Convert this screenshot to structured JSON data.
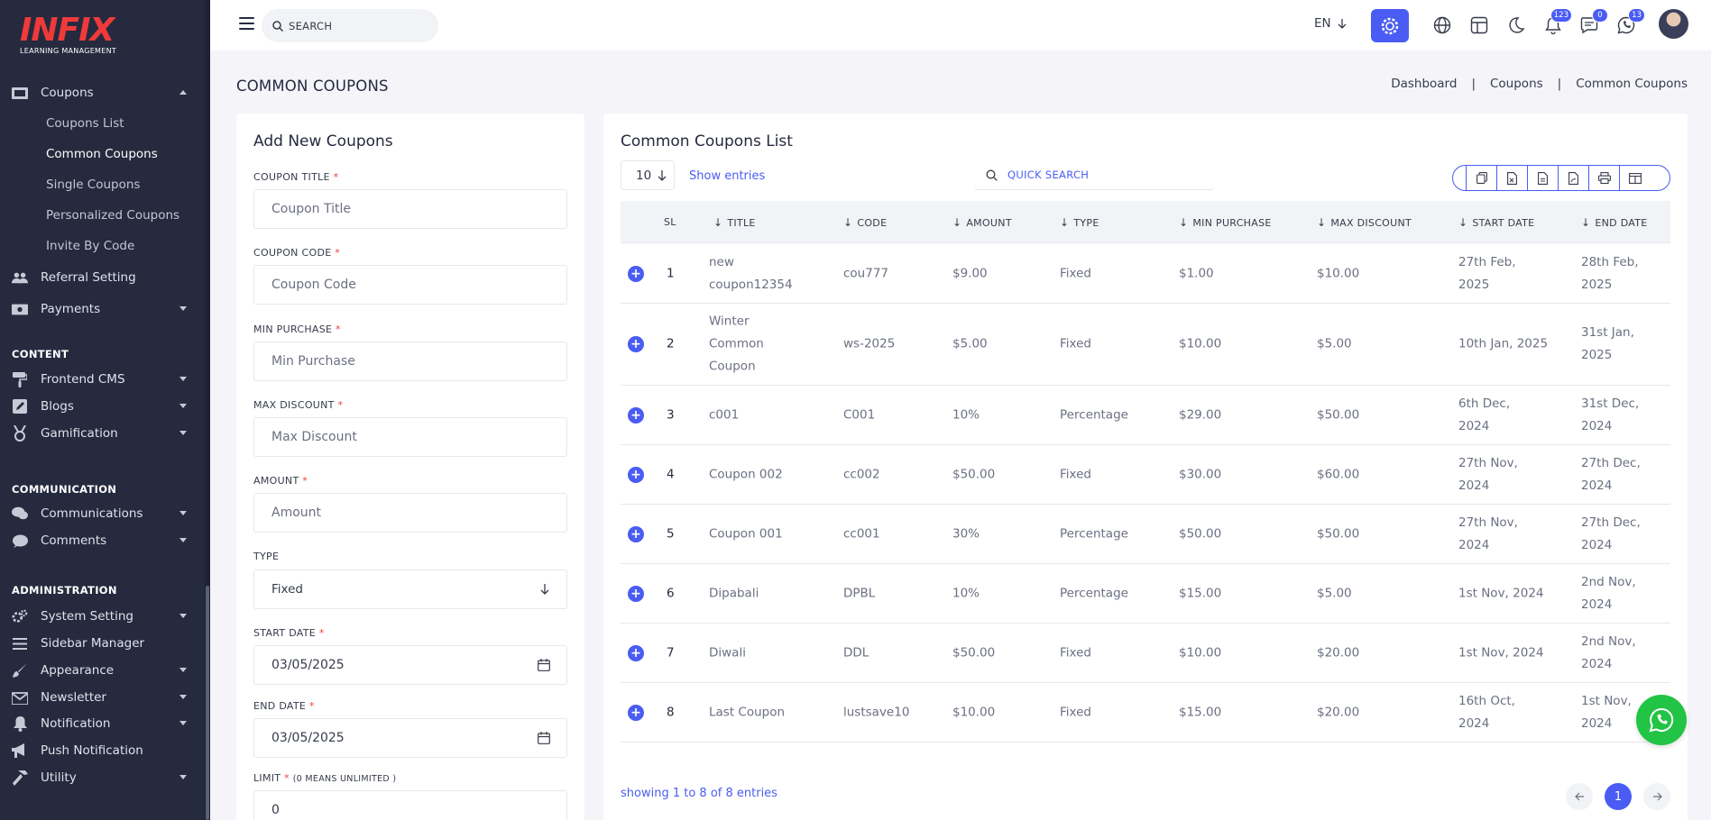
{
  "brand": {
    "logo_text": "INFIX",
    "tagline": "LEARNING MANAGEMENT"
  },
  "sidebar": {
    "coupons": "Coupons",
    "sub": [
      "Coupons List",
      "Common Coupons",
      "Single Coupons",
      "Personalized Coupons",
      "Invite By Code"
    ],
    "referral": "Referral Setting",
    "payments": "Payments",
    "section_content": "CONTENT",
    "frontend": "Frontend CMS",
    "blogs": "Blogs",
    "gamification": "Gamification",
    "section_communication": "COMMUNICATION",
    "communications": "Communications",
    "comments": "Comments",
    "section_administration": "ADMINISTRATION",
    "system_setting": "System Setting",
    "sidebar_manager": "Sidebar Manager",
    "appearance": "Appearance",
    "newsletter": "Newsletter",
    "notification": "Notification",
    "push_notification": "Push Notification",
    "utility": "Utility"
  },
  "topbar": {
    "search_placeholder": "SEARCH",
    "language": "EN",
    "badges": {
      "notifications": "123",
      "messages": "0",
      "whatsapp": "13"
    }
  },
  "header": {
    "title": "COMMON COUPONS",
    "breadcrumb": [
      "Dashboard",
      "Coupons",
      "Common Coupons"
    ],
    "sep": "|"
  },
  "form": {
    "title": "Add New Coupons",
    "coupon_title_label": "COUPON TITLE",
    "coupon_title_placeholder": "Coupon Title",
    "coupon_code_label": "COUPON CODE",
    "coupon_code_placeholder": "Coupon Code",
    "min_purchase_label": "MIN PURCHASE",
    "min_purchase_placeholder": "Min Purchase",
    "max_discount_label": "MAX DISCOUNT",
    "max_discount_placeholder": "Max Discount",
    "amount_label": "AMOUNT",
    "amount_placeholder": "Amount",
    "type_label": "TYPE",
    "type_value": "Fixed",
    "start_date_label": "START DATE",
    "start_date_value": "03/05/2025",
    "end_date_label": "END DATE",
    "end_date_value": "03/05/2025",
    "limit_label": "LIMIT",
    "limit_note": "(0 MEANS UNLIMITED )",
    "limit_value": "0",
    "required_mark": "*"
  },
  "list": {
    "title": "Common Coupons List",
    "entries_value": "10",
    "entries_label": "Show entries",
    "quick_search_placeholder": "QUICK SEARCH",
    "columns": {
      "sl": "SL",
      "title": "TITLE",
      "code": "CODE",
      "amount": "AMOUNT",
      "type": "TYPE",
      "min_purchase": "MIN PURCHASE",
      "max_discount": "MAX DISCOUNT",
      "start_date": "START DATE",
      "end_date": "END DATE"
    },
    "rows": [
      {
        "sl": "1",
        "title": "new coupon12354",
        "code": "cou777",
        "amount": "$9.00",
        "type": "Fixed",
        "min": "$1.00",
        "max": "$10.00",
        "start": "27th Feb, 2025",
        "end": "28th Feb, 2025"
      },
      {
        "sl": "2",
        "title": "Winter Common Coupon",
        "code": "ws-2025",
        "amount": "$5.00",
        "type": "Fixed",
        "min": "$10.00",
        "max": "$5.00",
        "start": "10th Jan, 2025",
        "end": "31st Jan, 2025"
      },
      {
        "sl": "3",
        "title": "c001",
        "code": "C001",
        "amount": "10%",
        "type": "Percentage",
        "min": "$29.00",
        "max": "$50.00",
        "start": "6th Dec, 2024",
        "end": "31st Dec, 2024"
      },
      {
        "sl": "4",
        "title": "Coupon 002",
        "code": "cc002",
        "amount": "$50.00",
        "type": "Fixed",
        "min": "$30.00",
        "max": "$60.00",
        "start": "27th Nov, 2024",
        "end": "27th Dec, 2024"
      },
      {
        "sl": "5",
        "title": "Coupon 001",
        "code": "cc001",
        "amount": "30%",
        "type": "Percentage",
        "min": "$50.00",
        "max": "$50.00",
        "start": "27th Nov, 2024",
        "end": "27th Dec, 2024"
      },
      {
        "sl": "6",
        "title": "Dipabali",
        "code": "DPBL",
        "amount": "10%",
        "type": "Percentage",
        "min": "$15.00",
        "max": "$5.00",
        "start": "1st Nov, 2024",
        "end": "2nd Nov, 2024"
      },
      {
        "sl": "7",
        "title": "Diwali",
        "code": "DDL",
        "amount": "$50.00",
        "type": "Fixed",
        "min": "$10.00",
        "max": "$20.00",
        "start": "1st Nov, 2024",
        "end": "2nd Nov, 2024"
      },
      {
        "sl": "8",
        "title": "Last Coupon",
        "code": "lustsave10",
        "amount": "$10.00",
        "type": "Fixed",
        "min": "$15.00",
        "max": "$20.00",
        "start": "16th Oct, 2024",
        "end": "1st Nov, 2024"
      }
    ],
    "showing": "showing 1 to 8 of 8 entries",
    "page": "1"
  },
  "colors": {
    "accent": "#4a5cf3",
    "sidebar": "#252a3e",
    "whatsapp": "#21c444",
    "brand_red": "#ee3a3a"
  }
}
